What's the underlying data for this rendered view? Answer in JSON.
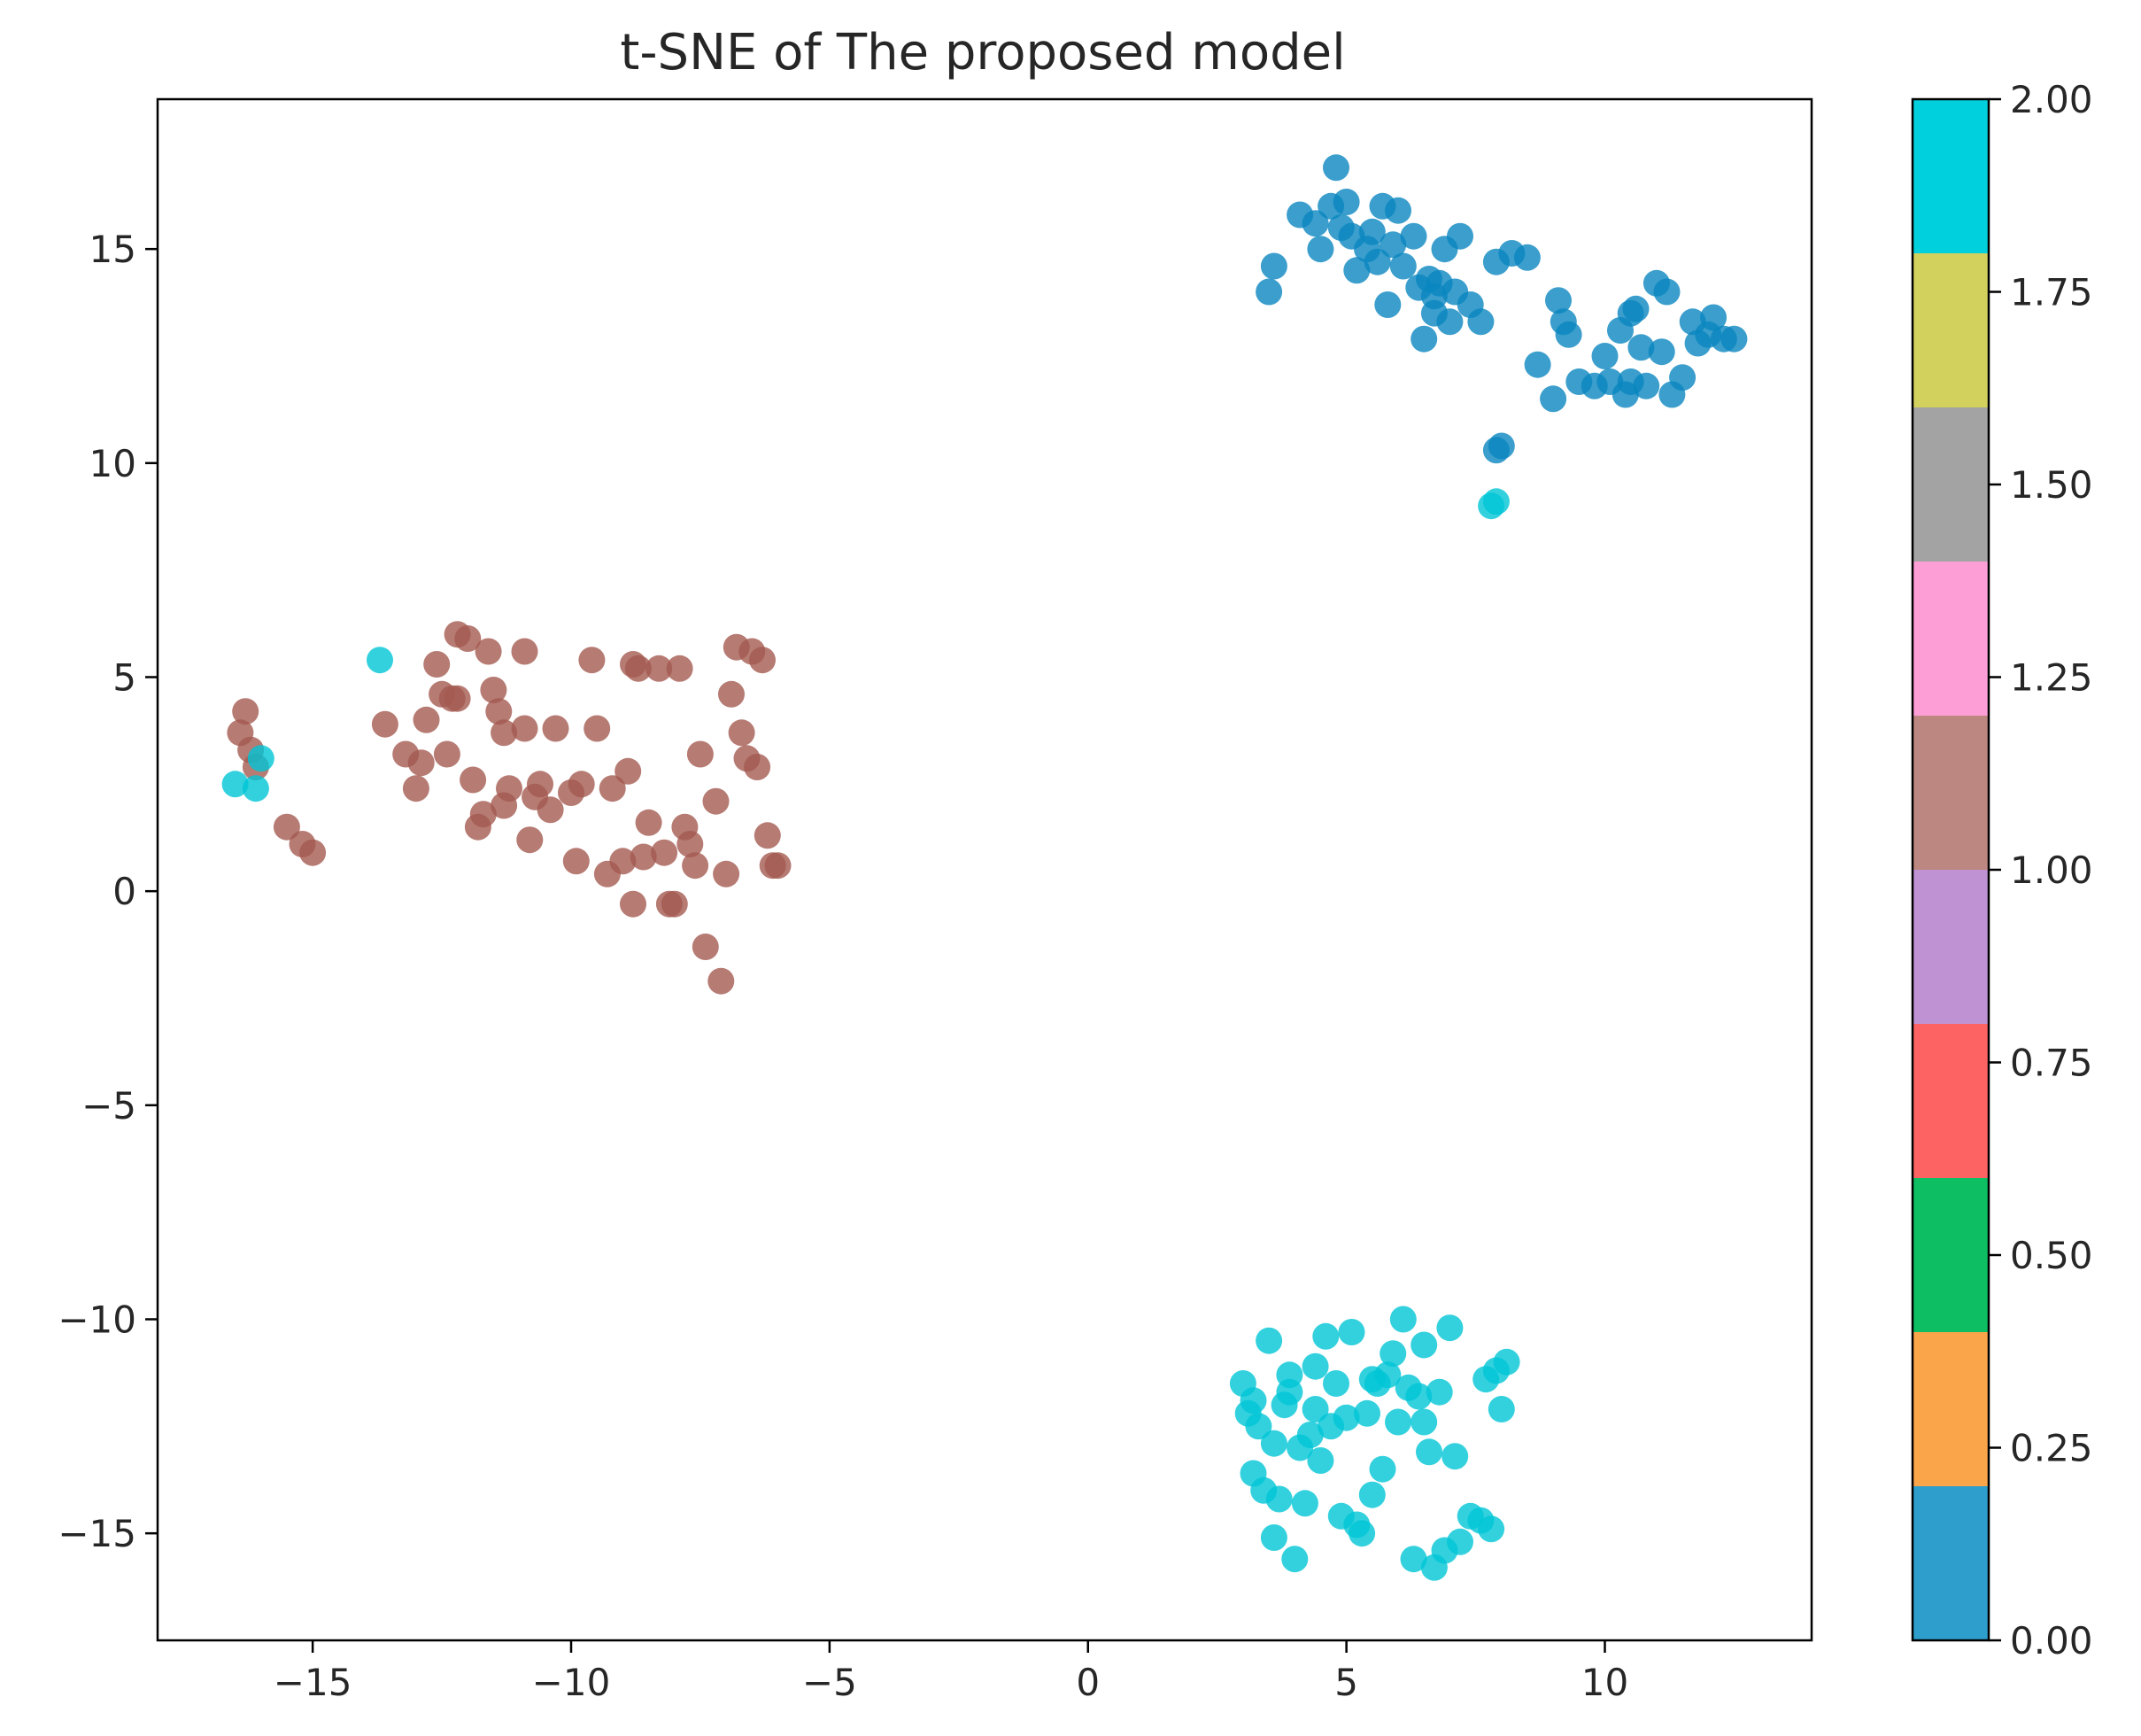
{
  "chart_data": {
    "type": "scatter",
    "title": "t-SNE of The proposed model",
    "xlabel": "",
    "ylabel": "",
    "xlim": [
      -18,
      14
    ],
    "ylim": [
      -17.5,
      18.5
    ],
    "xticks": [
      -15,
      -10,
      -5,
      0,
      5,
      10
    ],
    "xtick_labels": [
      "−15",
      "−10",
      "−5",
      "0",
      "5",
      "10"
    ],
    "yticks": [
      -15,
      -10,
      -5,
      0,
      5,
      10,
      15
    ],
    "ytick_labels": [
      "−15",
      "−10",
      "−5",
      "0",
      "5",
      "10",
      "15"
    ],
    "grid": false,
    "legend": "none",
    "marker_alpha": 0.8,
    "colorbar": {
      "range": [
        0.0,
        2.0
      ],
      "ticks": [
        0.0,
        0.25,
        0.5,
        0.75,
        1.0,
        1.25,
        1.5,
        1.75,
        2.0
      ],
      "tick_labels": [
        "0.00",
        "0.25",
        "0.50",
        "0.75",
        "1.00",
        "1.25",
        "1.50",
        "1.75",
        "2.00"
      ],
      "bands": [
        "#2e9ecc",
        "#fba54a",
        "#0dbe62",
        "#fe6363",
        "#bf92d3",
        "#bc8780",
        "#fe9ed7",
        "#a3a3a3",
        "#d3d15e",
        "#00d0dd"
      ]
    },
    "series": [
      {
        "label_value": 0,
        "color": "#0a86bf",
        "points": [
          [
            3.5,
            14.0
          ],
          [
            3.6,
            14.6
          ],
          [
            4.1,
            15.8
          ],
          [
            4.4,
            15.6
          ],
          [
            4.5,
            15.0
          ],
          [
            4.7,
            16.0
          ],
          [
            4.8,
            16.9
          ],
          [
            4.9,
            15.5
          ],
          [
            5.0,
            16.1
          ],
          [
            5.1,
            15.3
          ],
          [
            5.2,
            14.5
          ],
          [
            5.4,
            15.0
          ],
          [
            5.5,
            15.4
          ],
          [
            5.6,
            14.7
          ],
          [
            5.7,
            16.0
          ],
          [
            5.8,
            13.7
          ],
          [
            5.9,
            15.1
          ],
          [
            6.0,
            15.9
          ],
          [
            6.1,
            14.6
          ],
          [
            6.3,
            15.3
          ],
          [
            6.4,
            14.1
          ],
          [
            6.5,
            12.9
          ],
          [
            6.6,
            14.3
          ],
          [
            6.7,
            13.5
          ],
          [
            6.8,
            14.2
          ],
          [
            6.9,
            15.0
          ],
          [
            7.0,
            13.3
          ],
          [
            7.1,
            14.0
          ],
          [
            7.2,
            15.3
          ],
          [
            7.4,
            13.7
          ],
          [
            6.7,
            13.9
          ],
          [
            7.6,
            13.3
          ],
          [
            7.9,
            14.7
          ],
          [
            8.2,
            14.9
          ],
          [
            8.5,
            14.8
          ],
          [
            7.9,
            10.3
          ],
          [
            8.0,
            10.4
          ],
          [
            8.7,
            12.3
          ],
          [
            9.0,
            11.5
          ],
          [
            9.1,
            13.8
          ],
          [
            9.2,
            13.3
          ],
          [
            9.3,
            13.0
          ],
          [
            9.5,
            11.9
          ],
          [
            9.8,
            11.8
          ],
          [
            10.0,
            12.5
          ],
          [
            10.1,
            11.9
          ],
          [
            10.3,
            13.1
          ],
          [
            10.4,
            11.6
          ],
          [
            10.5,
            13.5
          ],
          [
            10.6,
            13.6
          ],
          [
            10.7,
            12.7
          ],
          [
            10.8,
            11.8
          ],
          [
            11.0,
            14.2
          ],
          [
            11.1,
            12.6
          ],
          [
            11.2,
            14.0
          ],
          [
            11.3,
            11.6
          ],
          [
            11.5,
            12.0
          ],
          [
            11.7,
            13.3
          ],
          [
            11.8,
            12.8
          ],
          [
            12.0,
            13.0
          ],
          [
            12.1,
            13.4
          ],
          [
            12.3,
            12.9
          ],
          [
            12.5,
            12.9
          ],
          [
            10.5,
            11.9
          ]
        ]
      },
      {
        "label_value": 1,
        "color": "#a45a50",
        "points": [
          [
            -16.4,
            3.7
          ],
          [
            -16.3,
            4.2
          ],
          [
            -16.2,
            3.3
          ],
          [
            -16.1,
            2.9
          ],
          [
            -15.5,
            1.5
          ],
          [
            -15.2,
            1.1
          ],
          [
            -15.0,
            0.9
          ],
          [
            -13.6,
            3.9
          ],
          [
            -13.2,
            3.2
          ],
          [
            -13.0,
            2.4
          ],
          [
            -12.9,
            3.0
          ],
          [
            -12.8,
            4.0
          ],
          [
            -12.6,
            5.3
          ],
          [
            -12.5,
            4.6
          ],
          [
            -12.4,
            3.2
          ],
          [
            -12.3,
            4.5
          ],
          [
            -12.2,
            6.0
          ],
          [
            -12.0,
            5.9
          ],
          [
            -11.9,
            2.6
          ],
          [
            -11.8,
            1.5
          ],
          [
            -11.7,
            1.8
          ],
          [
            -11.6,
            5.6
          ],
          [
            -11.5,
            4.7
          ],
          [
            -11.4,
            4.2
          ],
          [
            -11.3,
            3.7
          ],
          [
            -10.9,
            5.6
          ],
          [
            -10.8,
            1.2
          ],
          [
            -10.7,
            2.2
          ],
          [
            -10.6,
            2.5
          ],
          [
            -10.4,
            1.9
          ],
          [
            -10.3,
            3.8
          ],
          [
            -10.0,
            2.3
          ],
          [
            -9.8,
            2.5
          ],
          [
            -9.6,
            5.4
          ],
          [
            -9.5,
            3.8
          ],
          [
            -9.3,
            0.4
          ],
          [
            -9.2,
            2.4
          ],
          [
            -9.0,
            0.7
          ],
          [
            -8.9,
            2.8
          ],
          [
            -8.8,
            5.3
          ],
          [
            -8.7,
            5.2
          ],
          [
            -8.6,
            0.8
          ],
          [
            -8.5,
            1.6
          ],
          [
            -8.3,
            5.2
          ],
          [
            -8.2,
            0.9
          ],
          [
            -8.0,
            -0.3
          ],
          [
            -7.9,
            5.2
          ],
          [
            -7.8,
            1.5
          ],
          [
            -7.7,
            1.1
          ],
          [
            -7.6,
            0.6
          ],
          [
            -7.5,
            3.2
          ],
          [
            -7.4,
            -1.3
          ],
          [
            -7.2,
            2.1
          ],
          [
            -7.0,
            0.4
          ],
          [
            -6.9,
            4.6
          ],
          [
            -6.8,
            5.7
          ],
          [
            -6.7,
            3.7
          ],
          [
            -6.6,
            3.1
          ],
          [
            -6.5,
            5.6
          ],
          [
            -6.4,
            2.9
          ],
          [
            -6.3,
            5.4
          ],
          [
            -6.2,
            1.3
          ],
          [
            -6.1,
            0.6
          ],
          [
            -6.0,
            0.6
          ],
          [
            -7.1,
            -2.1
          ],
          [
            -8.1,
            -0.3
          ],
          [
            -8.8,
            -0.3
          ],
          [
            -9.9,
            0.7
          ],
          [
            -11.2,
            2.4
          ],
          [
            -10.9,
            3.8
          ],
          [
            -12.2,
            4.5
          ],
          [
            -11.3,
            2.0
          ]
        ]
      },
      {
        "label_value": 2,
        "color": "#00c6d6",
        "points": [
          [
            -16.5,
            2.5
          ],
          [
            -16.1,
            2.4
          ],
          [
            -16.0,
            3.1
          ],
          [
            -13.7,
            5.4
          ],
          [
            7.8,
            9.0
          ],
          [
            7.9,
            9.1
          ],
          [
            3.0,
            -11.5
          ],
          [
            3.1,
            -12.2
          ],
          [
            3.2,
            -13.6
          ],
          [
            3.3,
            -12.5
          ],
          [
            3.4,
            -14.0
          ],
          [
            3.5,
            -10.5
          ],
          [
            3.6,
            -12.9
          ],
          [
            3.7,
            -14.2
          ],
          [
            3.8,
            -12.0
          ],
          [
            3.9,
            -11.7
          ],
          [
            4.0,
            -15.6
          ],
          [
            4.1,
            -13.0
          ],
          [
            4.2,
            -14.3
          ],
          [
            4.3,
            -12.7
          ],
          [
            4.4,
            -12.1
          ],
          [
            4.5,
            -13.3
          ],
          [
            4.6,
            -10.4
          ],
          [
            4.7,
            -12.5
          ],
          [
            4.8,
            -11.5
          ],
          [
            4.9,
            -14.6
          ],
          [
            5.0,
            -12.3
          ],
          [
            5.1,
            -10.3
          ],
          [
            5.2,
            -14.8
          ],
          [
            5.3,
            -15.0
          ],
          [
            5.4,
            -12.2
          ],
          [
            5.5,
            -14.1
          ],
          [
            5.6,
            -11.5
          ],
          [
            5.7,
            -13.5
          ],
          [
            5.8,
            -11.3
          ],
          [
            5.9,
            -10.8
          ],
          [
            6.0,
            -12.4
          ],
          [
            6.1,
            -10.0
          ],
          [
            6.2,
            -11.6
          ],
          [
            6.3,
            -15.6
          ],
          [
            6.4,
            -11.8
          ],
          [
            6.5,
            -10.6
          ],
          [
            6.6,
            -13.1
          ],
          [
            6.7,
            -15.8
          ],
          [
            6.8,
            -11.7
          ],
          [
            6.9,
            -15.4
          ],
          [
            7.0,
            -10.2
          ],
          [
            7.1,
            -13.2
          ],
          [
            7.2,
            -15.2
          ],
          [
            7.4,
            -14.6
          ],
          [
            7.6,
            -14.7
          ],
          [
            7.7,
            -11.4
          ],
          [
            7.8,
            -14.9
          ],
          [
            7.9,
            -11.2
          ],
          [
            8.0,
            -12.1
          ],
          [
            8.1,
            -11.0
          ],
          [
            3.9,
            -11.3
          ],
          [
            4.4,
            -11.1
          ],
          [
            5.5,
            -11.4
          ],
          [
            6.5,
            -12.4
          ],
          [
            3.6,
            -15.1
          ],
          [
            3.2,
            -11.9
          ]
        ]
      }
    ]
  }
}
